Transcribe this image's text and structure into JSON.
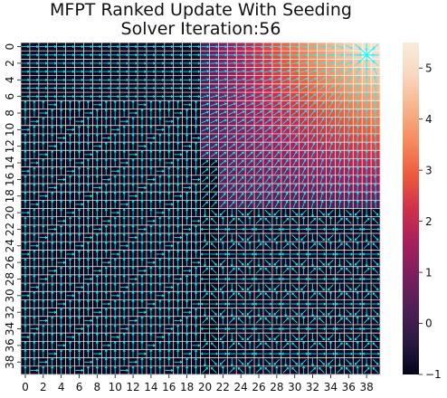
{
  "chart_data": {
    "type": "heatmap",
    "title_lines": [
      "MFPT Ranked Update With Seeding",
      "Solver Iteration:56"
    ],
    "rows": 40,
    "cols": 40,
    "x_tick_labels": [
      "0",
      "2",
      "4",
      "6",
      "8",
      "10",
      "12",
      "14",
      "16",
      "18",
      "20",
      "22",
      "24",
      "26",
      "28",
      "30",
      "32",
      "34",
      "36",
      "38"
    ],
    "y_tick_labels": [
      "0",
      "2",
      "4",
      "6",
      "8",
      "10",
      "12",
      "14",
      "16",
      "18",
      "20",
      "22",
      "24",
      "26",
      "28",
      "30",
      "32",
      "34",
      "36",
      "38"
    ],
    "colorbar": {
      "min": -1,
      "max": 5.5,
      "tick_values": [
        -1,
        0,
        1,
        2,
        3,
        4,
        5
      ],
      "tick_labels": [
        "−1",
        "0",
        "1",
        "2",
        "3",
        "4",
        "5"
      ],
      "colormap": [
        "#03051a",
        "#2b1a3e",
        "#511f55",
        "#7c1f5e",
        "#a8205c",
        "#d0314a",
        "#ee5a3e",
        "#f68a5c",
        "#f7b289",
        "#f8d7c0",
        "#faebdd"
      ]
    },
    "grid_color": "#ffffff",
    "arrow_color": "#00ffff",
    "regions": [
      {
        "name": "upper-right field",
        "rows": [
          0,
          19
        ],
        "cols": [
          20,
          39
        ],
        "value_at_row0_col39": 5.3,
        "value_at_row19_col20": 0.3
      },
      {
        "name": "left column band",
        "rows": [
          0,
          39
        ],
        "cols": [
          0,
          19
        ],
        "value": -0.85
      },
      {
        "name": "lower-right block",
        "rows": [
          20,
          39
        ],
        "cols": [
          20,
          39
        ],
        "value": -0.8
      },
      {
        "name": "separator strip",
        "rows": [
          14,
          39
        ],
        "cols": [
          20,
          21
        ],
        "value": -1.0
      },
      {
        "name": "goal cell",
        "row": 1,
        "col": 38,
        "value": 5.5
      }
    ]
  }
}
